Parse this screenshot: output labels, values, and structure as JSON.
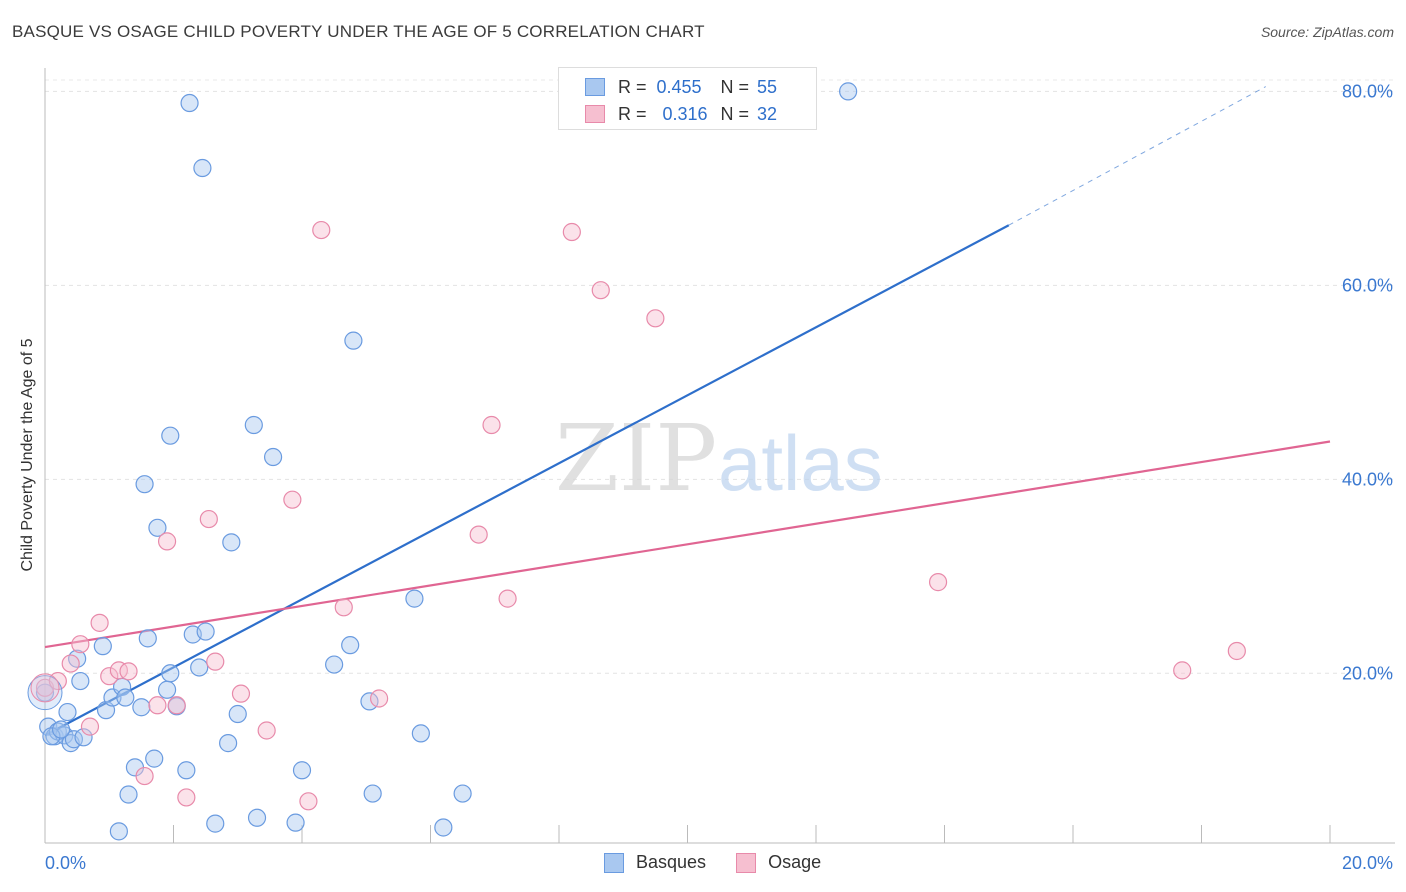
{
  "header": {
    "title": "BASQUE VS OSAGE CHILD POVERTY UNDER THE AGE OF 5 CORRELATION CHART",
    "source": "Source: ZipAtlas.com"
  },
  "watermark": {
    "zip": "ZIP",
    "atlas": "atlas"
  },
  "legend": {
    "rows": [
      {
        "r_label": "R =",
        "r_value": "0.455",
        "n_label": "N =",
        "n_value": "55"
      },
      {
        "r_label": "R =",
        "r_value": "0.316",
        "n_label": "N =",
        "n_value": "32"
      }
    ]
  },
  "bottom_legend": [
    {
      "label": "Basques"
    },
    {
      "label": "Osage"
    }
  ],
  "colors": {
    "basques_fill": "#a9c8f0",
    "basques_stroke": "#6a9be0",
    "basques_line": "#2e6fcb",
    "osage_fill": "#f6bfd0",
    "osage_stroke": "#e88aaa",
    "osage_line": "#e06592",
    "tick_label": "#3a78d0"
  },
  "chart_data": {
    "type": "scatter",
    "title": "BASQUE VS OSAGE CHILD POVERTY UNDER THE AGE OF 5 CORRELATION CHART",
    "xlabel": "",
    "ylabel": "Child Poverty Under the Age of 5",
    "xlim": [
      0,
      20
    ],
    "ylim": [
      2.5,
      82
    ],
    "x_tick_labels": [
      "0.0%",
      "20.0%"
    ],
    "y_ticks": [
      20,
      40,
      60,
      80
    ],
    "y_tick_labels": [
      "20.0%",
      "40.0%",
      "60.0%",
      "80.0%"
    ],
    "grid": true,
    "legend_position": "top-center",
    "series": [
      {
        "name": "Basques",
        "R": 0.455,
        "N": 55,
        "points": [
          [
            0.0,
            18.0
          ],
          [
            0.05,
            14.5
          ],
          [
            0.15,
            13.5
          ],
          [
            0.2,
            14.0
          ],
          [
            0.3,
            13.6
          ],
          [
            0.35,
            16.0
          ],
          [
            0.4,
            12.8
          ],
          [
            0.45,
            13.2
          ],
          [
            0.5,
            21.5
          ],
          [
            0.55,
            19.2
          ],
          [
            0.9,
            22.8
          ],
          [
            0.95,
            16.2
          ],
          [
            1.05,
            17.5
          ],
          [
            1.2,
            18.6
          ],
          [
            1.25,
            17.5
          ],
          [
            1.5,
            16.5
          ],
          [
            1.3,
            7.5
          ],
          [
            1.4,
            10.3
          ],
          [
            1.7,
            11.2
          ],
          [
            1.15,
            3.7
          ],
          [
            1.55,
            39.5
          ],
          [
            1.75,
            35.0
          ],
          [
            1.6,
            23.6
          ],
          [
            1.9,
            18.3
          ],
          [
            1.95,
            20.0
          ],
          [
            2.05,
            16.6
          ],
          [
            1.95,
            44.5
          ],
          [
            2.2,
            10.0
          ],
          [
            2.25,
            78.8
          ],
          [
            2.3,
            24.0
          ],
          [
            2.4,
            20.6
          ],
          [
            2.45,
            72.1
          ],
          [
            2.5,
            24.3
          ],
          [
            2.65,
            4.5
          ],
          [
            2.85,
            12.8
          ],
          [
            2.9,
            33.5
          ],
          [
            3.0,
            15.8
          ],
          [
            3.25,
            45.6
          ],
          [
            3.3,
            5.1
          ],
          [
            3.55,
            42.3
          ],
          [
            3.9,
            4.6
          ],
          [
            4.0,
            10.0
          ],
          [
            4.5,
            20.9
          ],
          [
            4.75,
            22.9
          ],
          [
            4.8,
            54.3
          ],
          [
            5.05,
            17.1
          ],
          [
            5.1,
            7.6
          ],
          [
            5.75,
            27.7
          ],
          [
            5.85,
            13.8
          ],
          [
            6.2,
            4.1
          ],
          [
            6.5,
            7.6
          ],
          [
            12.5,
            80.0
          ],
          [
            0.1,
            13.5
          ],
          [
            0.6,
            13.4
          ],
          [
            0.25,
            14.2
          ]
        ]
      },
      {
        "name": "Osage",
        "R": 0.316,
        "N": 32,
        "points": [
          [
            0.0,
            18.5
          ],
          [
            0.2,
            19.2
          ],
          [
            0.4,
            21.0
          ],
          [
            0.55,
            23.0
          ],
          [
            0.7,
            14.5
          ],
          [
            0.85,
            25.2
          ],
          [
            1.0,
            19.7
          ],
          [
            1.15,
            20.3
          ],
          [
            1.3,
            20.2
          ],
          [
            1.55,
            9.4
          ],
          [
            1.75,
            16.7
          ],
          [
            1.9,
            33.6
          ],
          [
            2.05,
            16.7
          ],
          [
            2.2,
            7.2
          ],
          [
            2.55,
            35.9
          ],
          [
            2.65,
            21.2
          ],
          [
            3.05,
            17.9
          ],
          [
            3.45,
            14.1
          ],
          [
            3.85,
            37.9
          ],
          [
            4.1,
            6.8
          ],
          [
            4.3,
            65.7
          ],
          [
            4.65,
            26.8
          ],
          [
            5.2,
            17.4
          ],
          [
            6.75,
            34.3
          ],
          [
            6.95,
            45.6
          ],
          [
            7.2,
            27.7
          ],
          [
            8.2,
            65.5
          ],
          [
            8.65,
            59.5
          ],
          [
            9.5,
            56.6
          ],
          [
            13.9,
            29.4
          ],
          [
            17.7,
            20.3
          ],
          [
            18.55,
            22.3
          ]
        ]
      }
    ],
    "trendlines": [
      {
        "series": "Basques",
        "x_solid": [
          0.0,
          15.0
        ],
        "y_solid": [
          13.6,
          66.2
        ],
        "x_dashed": [
          15.0,
          19.0
        ],
        "y_dashed": [
          66.2,
          80.5
        ]
      },
      {
        "series": "Osage",
        "x": [
          0.0,
          20.0
        ],
        "y": [
          22.7,
          43.9
        ]
      }
    ]
  }
}
